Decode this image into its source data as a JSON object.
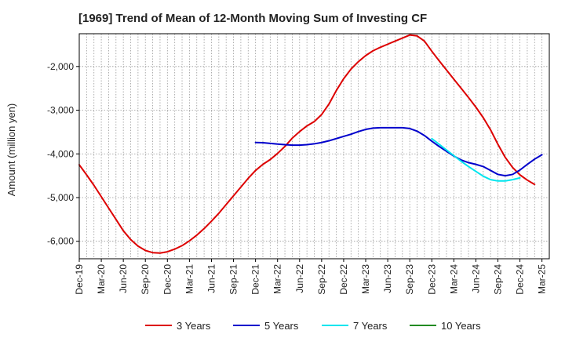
{
  "chart_data": {
    "type": "line",
    "title": "[1969]  Trend of Mean of 12-Month Moving Sum of Investing CF",
    "xlabel": "",
    "ylabel": "Amount (million yen)",
    "ylim": [
      -6400,
      -1250
    ],
    "yticks": [
      -6000,
      -5000,
      -4000,
      -3000,
      -2000
    ],
    "ytick_labels": [
      "-6,000",
      "-5,000",
      "-4,000",
      "-3,000",
      "-2,000"
    ],
    "x_start": "2019-12",
    "x_months": 64,
    "xtick_labels": [
      "Dec-19",
      "Mar-20",
      "Jun-20",
      "Sep-20",
      "Dec-20",
      "Mar-21",
      "Jun-21",
      "Sep-21",
      "Dec-21",
      "Mar-22",
      "Jun-22",
      "Sep-22",
      "Dec-22",
      "Mar-23",
      "Jun-23",
      "Sep-23",
      "Dec-23",
      "Mar-24",
      "Jun-24",
      "Sep-24",
      "Dec-24",
      "Mar-25"
    ],
    "grid": true,
    "legend_position": "bottom",
    "series": [
      {
        "name": "3 Years",
        "color": "#dd0000",
        "start_index": 0,
        "values": [
          -4250,
          -4480,
          -4720,
          -4980,
          -5240,
          -5500,
          -5760,
          -5960,
          -6110,
          -6210,
          -6260,
          -6270,
          -6240,
          -6180,
          -6100,
          -5990,
          -5860,
          -5710,
          -5540,
          -5360,
          -5160,
          -4960,
          -4760,
          -4560,
          -4380,
          -4240,
          -4130,
          -3990,
          -3830,
          -3640,
          -3490,
          -3360,
          -3260,
          -3100,
          -2860,
          -2550,
          -2280,
          -2060,
          -1890,
          -1750,
          -1640,
          -1560,
          -1490,
          -1420,
          -1350,
          -1280,
          -1300,
          -1420,
          -1650,
          -1870,
          -2080,
          -2290,
          -2500,
          -2710,
          -2930,
          -3170,
          -3450,
          -3780,
          -4080,
          -4310,
          -4480,
          -4600,
          -4700
        ]
      },
      {
        "name": "5 Years",
        "color": "#0000cc",
        "start_index": 24,
        "values": [
          -3740,
          -3745,
          -3760,
          -3775,
          -3790,
          -3800,
          -3800,
          -3790,
          -3770,
          -3740,
          -3700,
          -3650,
          -3600,
          -3550,
          -3490,
          -3440,
          -3410,
          -3400,
          -3400,
          -3400,
          -3400,
          -3420,
          -3480,
          -3580,
          -3710,
          -3830,
          -3940,
          -4050,
          -4140,
          -4200,
          -4240,
          -4290,
          -4380,
          -4470,
          -4500,
          -4470,
          -4370,
          -4240,
          -4120,
          -4020
        ]
      },
      {
        "name": "7 Years",
        "color": "#00e5ee",
        "start_index": 48,
        "values": [
          -3650,
          -3780,
          -3910,
          -4040,
          -4170,
          -4290,
          -4400,
          -4510,
          -4590,
          -4620,
          -4620,
          -4590,
          -4550
        ]
      },
      {
        "name": "10 Years",
        "color": "#228b22",
        "start_index": 0,
        "values": []
      }
    ]
  }
}
